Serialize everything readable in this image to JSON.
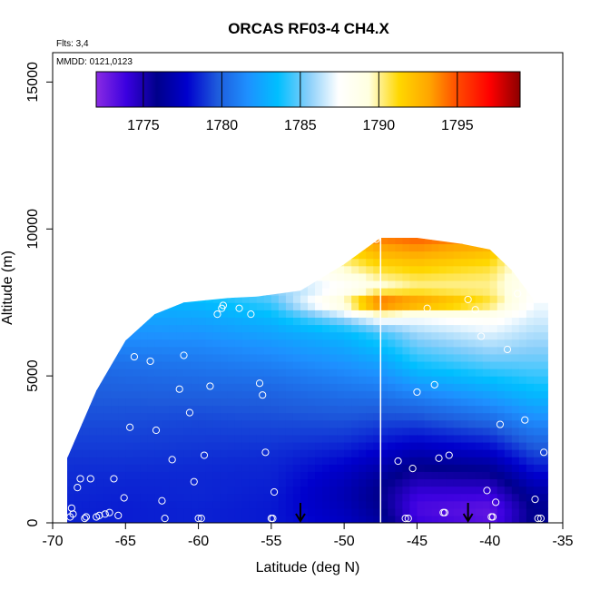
{
  "chart_data": {
    "type": "heatmap",
    "title": "ORCAS RF03-4 CH4.X",
    "annotations": [
      "Flts: 3,4",
      "MMDD: 0121,0123"
    ],
    "xlabel": "Latitude (deg N)",
    "ylabel": "Altitude (m)",
    "xlim": [
      -70,
      -35
    ],
    "ylim": [
      0,
      16000
    ],
    "x_ticks": [
      -70,
      -65,
      -60,
      -55,
      -50,
      -45,
      -40,
      -35
    ],
    "x_tick_labels": [
      "-70",
      "-65",
      "-60",
      "-55",
      "-50",
      "-45",
      "-40",
      "-35"
    ],
    "y_ticks": [
      0,
      5000,
      10000,
      15000
    ],
    "y_tick_labels": [
      "0",
      "5000",
      "10000",
      "15000"
    ],
    "colorbar": {
      "min": 1772,
      "max": 1799,
      "ticks": [
        1775,
        1780,
        1785,
        1790,
        1795
      ],
      "tick_labels": [
        "1775",
        "1780",
        "1785",
        "1790",
        "1795"
      ],
      "colors": [
        "#8a2be2",
        "#3a00e0",
        "#00008b",
        "#0000cd",
        "#1e5bdc",
        "#1e90ff",
        "#00bfff",
        "#87cefa",
        "#ffffff",
        "#ffffe0",
        "#ffd700",
        "#ffa500",
        "#ff4500",
        "#ff0000",
        "#8b0000"
      ]
    },
    "envelope": {
      "lat": [
        -69,
        -67,
        -65,
        -63,
        -61,
        -58,
        -56,
        -53,
        -50,
        -47.5,
        -45,
        -42,
        -40,
        -38.5,
        -37,
        -36
      ],
      "top_alt": [
        2200,
        4500,
        6200,
        7100,
        7500,
        7650,
        7700,
        7900,
        8800,
        9700,
        9700,
        9500,
        9300,
        8600,
        7600,
        7700
      ],
      "bottom_alt": [
        0,
        0,
        0,
        0,
        0,
        0,
        0,
        0,
        0,
        0,
        0,
        0,
        0,
        0,
        0,
        0
      ]
    },
    "field_profiles": {
      "alt": [
        0,
        500,
        1000,
        1500,
        2000,
        2500,
        3000,
        3500,
        4000,
        4500,
        5000,
        5500,
        6000,
        6500,
        7000,
        7500,
        8000,
        8500,
        9000,
        9500,
        10000
      ],
      "lat": [
        -69,
        -65,
        -60,
        -55,
        -50,
        -47.5,
        -45,
        -40,
        -37
      ],
      "values": [
        [
          1778.5,
          1778.5,
          1778.6,
          1778.7,
          1778.8,
          1779.0,
          1779.2,
          1779.4,
          1779.6,
          1779.8,
          1780.0,
          1780.4,
          1780.8,
          1781.2,
          1781.6,
          1782.0,
          1782.4,
          1782.8,
          1783.0,
          1783.2,
          1783.4
        ],
        [
          1778.4,
          1778.4,
          1778.5,
          1778.6,
          1778.8,
          1779.0,
          1779.2,
          1779.4,
          1779.6,
          1779.9,
          1780.2,
          1780.6,
          1781.2,
          1781.8,
          1782.4,
          1783.0,
          1783.6,
          1784.2,
          1784.6,
          1785.0,
          1785.2
        ],
        [
          1778.5,
          1778.5,
          1778.6,
          1778.6,
          1778.7,
          1778.9,
          1779.1,
          1779.3,
          1779.6,
          1780.0,
          1780.4,
          1780.8,
          1781.3,
          1781.9,
          1782.5,
          1783.3,
          1784.0,
          1784.5,
          1785.0,
          1785.4,
          1785.6
        ],
        [
          1778.3,
          1778.3,
          1778.4,
          1778.5,
          1778.6,
          1778.8,
          1779.1,
          1779.4,
          1779.7,
          1780.1,
          1780.6,
          1781.2,
          1781.8,
          1782.5,
          1783.3,
          1784.5,
          1785.5,
          1786.2,
          1786.8,
          1787.3,
          1787.6
        ],
        [
          1777.5,
          1777.2,
          1777.0,
          1777.3,
          1777.8,
          1778.4,
          1779.0,
          1779.5,
          1780.0,
          1780.6,
          1781.2,
          1781.9,
          1782.6,
          1783.4,
          1786.0,
          1790.0,
          1787.5,
          1789.0,
          1790.5,
          1791.5,
          1792.5
        ],
        [
          1776.5,
          1776.0,
          1775.8,
          1776.2,
          1777.0,
          1777.8,
          1778.6,
          1779.3,
          1780.0,
          1780.8,
          1781.6,
          1782.5,
          1783.5,
          1784.6,
          1788.0,
          1795.5,
          1789.0,
          1790.5,
          1792.0,
          1793.5,
          1795.0
        ],
        [
          1774.0,
          1773.5,
          1774.0,
          1775.0,
          1776.0,
          1777.2,
          1778.3,
          1779.3,
          1780.3,
          1781.5,
          1782.8,
          1784.0,
          1785.0,
          1786.0,
          1787.5,
          1794.0,
          1790.0,
          1791.0,
          1792.5,
          1794.0,
          1795.5
        ],
        [
          1773.2,
          1773.0,
          1774.0,
          1775.2,
          1776.5,
          1777.8,
          1779.0,
          1780.2,
          1781.4,
          1782.6,
          1783.8,
          1785.0,
          1786.0,
          1787.0,
          1788.0,
          1791.0,
          1790.0,
          1790.5,
          1791.5,
          1793.0,
          1794.5
        ],
        [
          1776.0,
          1776.0,
          1776.5,
          1777.5,
          1778.5,
          1779.5,
          1780.5,
          1781.5,
          1782.5,
          1783.5,
          1784.3,
          1785.0,
          1785.6,
          1786.2,
          1786.8,
          1787.3,
          1787.8,
          1788.0,
          1788.2,
          1788.4,
          1788.5
        ]
      ]
    },
    "flight_points": [
      {
        "lat": -68.8,
        "alt": 200
      },
      {
        "lat": -68.7,
        "alt": 500
      },
      {
        "lat": -68.6,
        "alt": 300
      },
      {
        "lat": -68.3,
        "alt": 1200
      },
      {
        "lat": -68.1,
        "alt": 1500
      },
      {
        "lat": -67.8,
        "alt": 150
      },
      {
        "lat": -67.7,
        "alt": 200
      },
      {
        "lat": -67.4,
        "alt": 1500
      },
      {
        "lat": -67.0,
        "alt": 200
      },
      {
        "lat": -66.8,
        "alt": 250
      },
      {
        "lat": -66.4,
        "alt": 300
      },
      {
        "lat": -66.1,
        "alt": 350
      },
      {
        "lat": -65.8,
        "alt": 1500
      },
      {
        "lat": -65.5,
        "alt": 250
      },
      {
        "lat": -65.1,
        "alt": 850
      },
      {
        "lat": -64.7,
        "alt": 3250
      },
      {
        "lat": -64.4,
        "alt": 5650
      },
      {
        "lat": -64.0,
        "alt": 7100
      },
      {
        "lat": -63.3,
        "alt": 5500
      },
      {
        "lat": -62.9,
        "alt": 3150
      },
      {
        "lat": -62.5,
        "alt": 750
      },
      {
        "lat": -62.3,
        "alt": 150
      },
      {
        "lat": -61.8,
        "alt": 2150
      },
      {
        "lat": -61.3,
        "alt": 4550
      },
      {
        "lat": -61.0,
        "alt": 5700
      },
      {
        "lat": -60.6,
        "alt": 3750
      },
      {
        "lat": -60.3,
        "alt": 1400
      },
      {
        "lat": -60.0,
        "alt": 150
      },
      {
        "lat": -59.8,
        "alt": 150
      },
      {
        "lat": -59.6,
        "alt": 2300
      },
      {
        "lat": -59.2,
        "alt": 4650
      },
      {
        "lat": -58.7,
        "alt": 7100
      },
      {
        "lat": -58.4,
        "alt": 7300
      },
      {
        "lat": -58.3,
        "alt": 7400
      },
      {
        "lat": -57.2,
        "alt": 7300
      },
      {
        "lat": -56.7,
        "alt": 8300
      },
      {
        "lat": -56.4,
        "alt": 7100
      },
      {
        "lat": -55.8,
        "alt": 4750
      },
      {
        "lat": -55.6,
        "alt": 4350
      },
      {
        "lat": -55.4,
        "alt": 2400
      },
      {
        "lat": -55.0,
        "alt": 150
      },
      {
        "lat": -54.9,
        "alt": 150
      },
      {
        "lat": -54.8,
        "alt": 1050
      },
      {
        "lat": -47.8,
        "alt": 9650
      },
      {
        "lat": -46.3,
        "alt": 2100
      },
      {
        "lat": -45.8,
        "alt": 150
      },
      {
        "lat": -45.6,
        "alt": 150
      },
      {
        "lat": -45.3,
        "alt": 1850
      },
      {
        "lat": -45.0,
        "alt": 4450
      },
      {
        "lat": -44.3,
        "alt": 7300
      },
      {
        "lat": -43.8,
        "alt": 4700
      },
      {
        "lat": -43.5,
        "alt": 2200
      },
      {
        "lat": -43.2,
        "alt": 350
      },
      {
        "lat": -43.1,
        "alt": 350
      },
      {
        "lat": -42.8,
        "alt": 2300
      },
      {
        "lat": -41.5,
        "alt": 7600
      },
      {
        "lat": -41.0,
        "alt": 7250
      },
      {
        "lat": -40.6,
        "alt": 6350
      },
      {
        "lat": -40.2,
        "alt": 1100
      },
      {
        "lat": -39.9,
        "alt": 200
      },
      {
        "lat": -39.8,
        "alt": 200
      },
      {
        "lat": -39.6,
        "alt": 700
      },
      {
        "lat": -39.3,
        "alt": 3350
      },
      {
        "lat": -38.8,
        "alt": 5900
      },
      {
        "lat": -38.1,
        "alt": 7800
      },
      {
        "lat": -37.6,
        "alt": 3500
      },
      {
        "lat": -36.9,
        "alt": 800
      },
      {
        "lat": -36.7,
        "alt": 150
      },
      {
        "lat": -36.5,
        "alt": 150
      },
      {
        "lat": -36.3,
        "alt": 2400
      },
      {
        "lat": -35.5,
        "alt": 7600
      }
    ],
    "arrows_lat": [
      -53.0,
      -41.5
    ],
    "vertical_line_lat": -47.5
  }
}
